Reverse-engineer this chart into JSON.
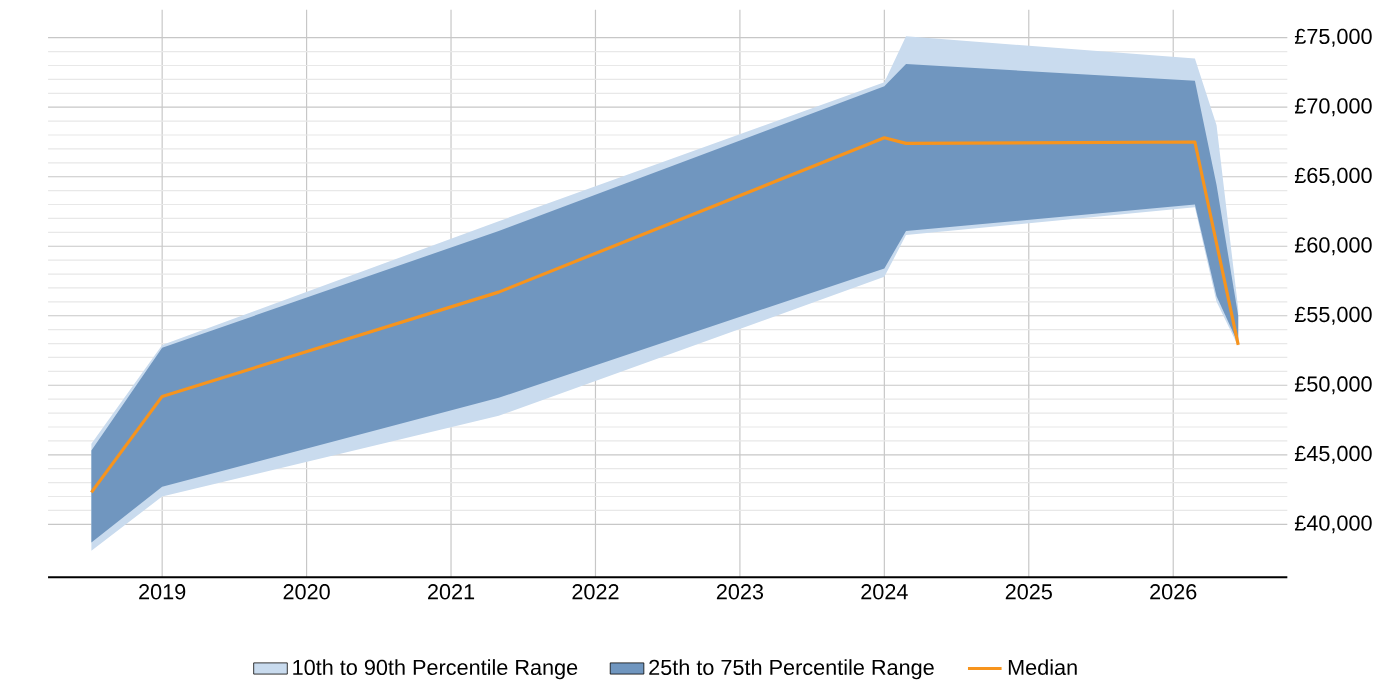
{
  "chart_data": {
    "type": "line",
    "xlim": [
      2018.21,
      2026.79
    ],
    "ylim": [
      36200,
      77000
    ],
    "xticks": [
      2019,
      2020,
      2021,
      2022,
      2023,
      2024,
      2025,
      2026
    ],
    "yticks": [
      {
        "value": 40000,
        "label": "£40,000"
      },
      {
        "value": 45000,
        "label": "£45,000"
      },
      {
        "value": 50000,
        "label": "£50,000"
      },
      {
        "value": 55000,
        "label": "£55,000"
      },
      {
        "value": 60000,
        "label": "£60,000"
      },
      {
        "value": 65000,
        "label": "£65,000"
      },
      {
        "value": 70000,
        "label": "£70,000"
      },
      {
        "value": 75000,
        "label": "£75,000"
      }
    ],
    "grid": true,
    "legend": "bottom",
    "series": [
      {
        "name": "Median",
        "color": "#f7941d",
        "x": [
          2018.51,
          2019.0,
          2021.33,
          2024.0,
          2024.15,
          2026.15,
          2026.45
        ],
        "values": [
          42300,
          49200,
          56700,
          67800,
          67400,
          67500,
          52900
        ]
      },
      {
        "name": "25th to 75th Percentile Range",
        "type": "area",
        "color": "#7096bf",
        "x": [
          2018.51,
          2019.0,
          2021.33,
          2024.0,
          2024.15,
          2026.15,
          2026.3,
          2026.45
        ],
        "values": [
          null,
          null,
          null,
          null,
          null,
          null,
          null,
          null
        ],
        "lower": [
          38700,
          42700,
          49100,
          58400,
          61100,
          63000,
          56400,
          53000
        ],
        "upper": [
          45300,
          52700,
          61100,
          71500,
          73100,
          71900,
          64400,
          55000
        ]
      },
      {
        "name": "10th to 90th Percentile Range",
        "type": "area",
        "color": "#c9dbee",
        "x": [
          2018.51,
          2019.0,
          2021.33,
          2024.0,
          2024.15,
          2026.15,
          2026.3,
          2026.45
        ],
        "values": [
          null,
          null,
          null,
          null,
          null,
          null,
          null,
          null
        ],
        "lower": [
          38100,
          42000,
          47800,
          57800,
          60800,
          62800,
          56000,
          52800
        ],
        "upper": [
          45800,
          52900,
          61800,
          71800,
          75100,
          73500,
          68700,
          55500
        ]
      }
    ]
  }
}
